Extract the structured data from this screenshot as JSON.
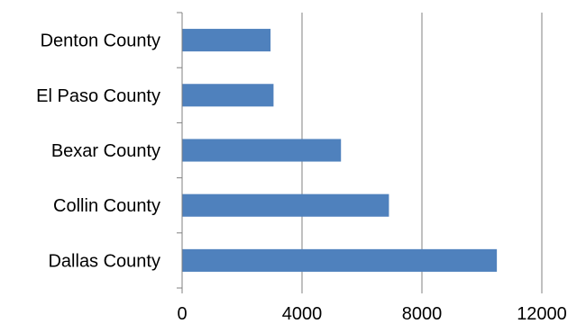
{
  "chart_data": {
    "type": "bar",
    "orientation": "horizontal",
    "categories": [
      "Dallas County",
      "Collin County",
      "Bexar County",
      "El Paso County",
      "Denton County"
    ],
    "values": [
      10500,
      6900,
      5300,
      3050,
      2950
    ],
    "xlim": [
      0,
      12000
    ],
    "x_ticks": [
      "0",
      "4000",
      "8000",
      "12000"
    ],
    "grid": true,
    "legend": "none",
    "bar_color": "#4F81BD"
  }
}
